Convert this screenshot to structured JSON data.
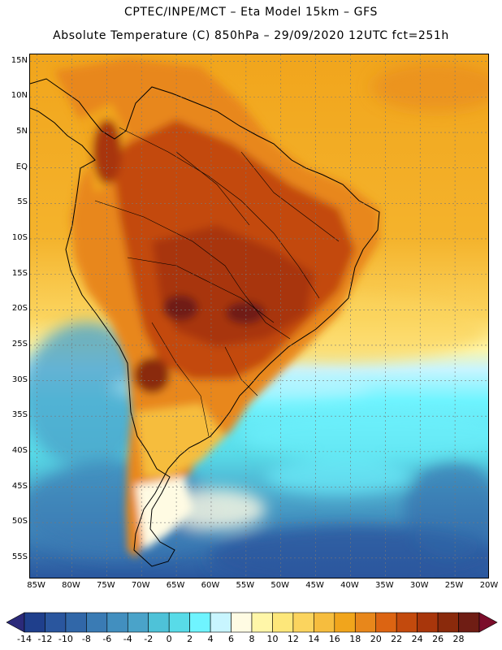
{
  "title": {
    "line1": "CPTEC/INPE/MCT –  Eta Model 15km – GFS",
    "line2": "Absolute Temperature (C) 850hPa – 29/09/2020 12UTC fct=251h"
  },
  "map": {
    "region": "South America",
    "variable": "Absolute Temperature (C) 850hPa",
    "lat_range": [
      -58,
      16
    ],
    "lon_range": [
      -86,
      -20
    ],
    "lat_labels": [
      "15N",
      "10N",
      "5N",
      "EQ",
      "5S",
      "10S",
      "15S",
      "20S",
      "25S",
      "30S",
      "35S",
      "40S",
      "45S",
      "50S",
      "55S"
    ],
    "lat_values": [
      15,
      10,
      5,
      0,
      -5,
      -10,
      -15,
      -20,
      -25,
      -30,
      -35,
      -40,
      -45,
      -50,
      -55
    ],
    "lon_labels": [
      "85W",
      "80W",
      "75W",
      "70W",
      "65W",
      "60W",
      "55W",
      "50W",
      "45W",
      "40W",
      "35W",
      "30W",
      "25W",
      "20W"
    ],
    "lon_values": [
      -85,
      -80,
      -75,
      -70,
      -65,
      -60,
      -55,
      -50,
      -45,
      -40,
      -35,
      -30,
      -25,
      -20
    ]
  },
  "colorbar": {
    "labels": [
      "-14",
      "-12",
      "-10",
      "-8",
      "-6",
      "-4",
      "-2",
      "0",
      "2",
      "4",
      "6",
      "8",
      "10",
      "12",
      "14",
      "16",
      "18",
      "20",
      "22",
      "24",
      "26",
      "28"
    ],
    "colors": [
      "#1f3f8c",
      "#2a569e",
      "#3167a8",
      "#3a7bb4",
      "#428fbf",
      "#4aa3c9",
      "#4ec2d8",
      "#58dbe8",
      "#6ff4ff",
      "#c8f5ff",
      "#fffbe3",
      "#fff6a8",
      "#fde77a",
      "#fbd45e",
      "#f6bd3e",
      "#f1a51c",
      "#e8871b",
      "#dc6412",
      "#c34a0d",
      "#a8360b",
      "#8a2a0c",
      "#6f1d14"
    ],
    "low_color": "#2b2a7a",
    "high_color": "#7b0d2a"
  }
}
